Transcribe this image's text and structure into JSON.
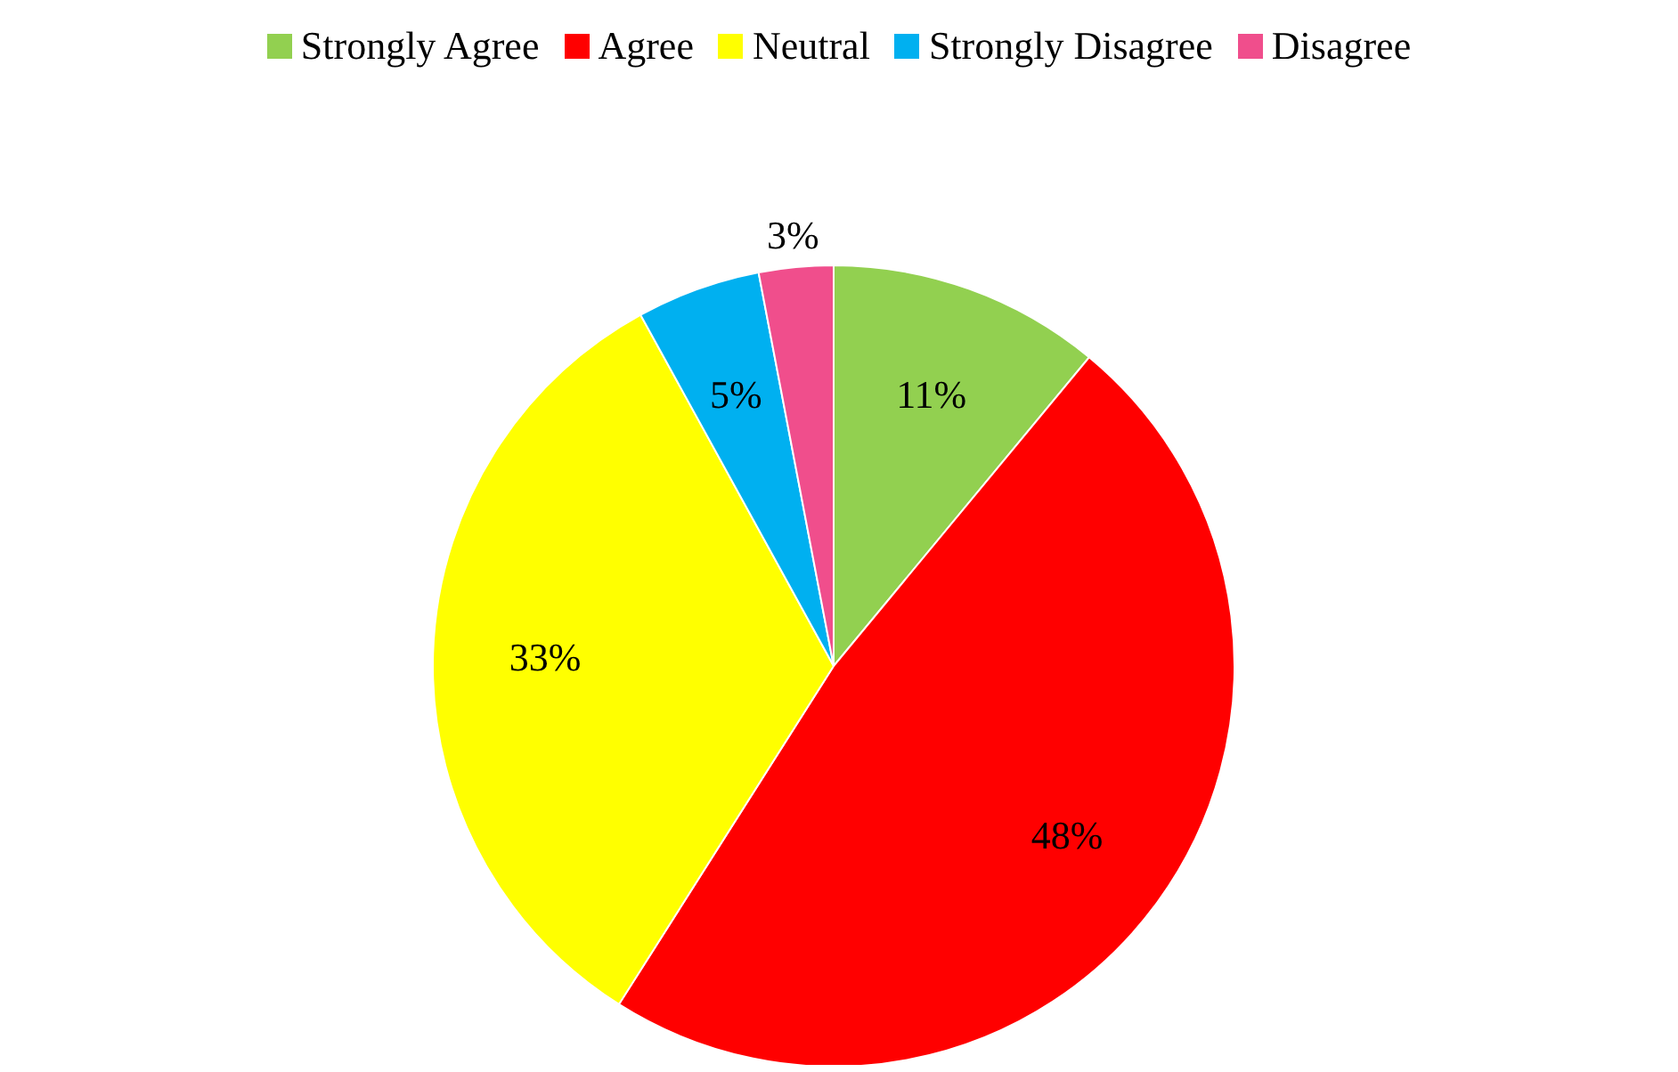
{
  "chart_data": {
    "type": "pie",
    "categories": [
      "Strongly Agree",
      "Agree",
      "Neutral",
      "Strongly Disagree",
      "Disagree"
    ],
    "values": [
      11,
      48,
      33,
      5,
      3
    ],
    "colors": [
      "#92d050",
      "#ff0000",
      "#ffff00",
      "#00b0f0",
      "#f04e8c"
    ],
    "value_labels": [
      "11%",
      "48%",
      "33%",
      "5%",
      "3%"
    ],
    "legend": "top"
  }
}
